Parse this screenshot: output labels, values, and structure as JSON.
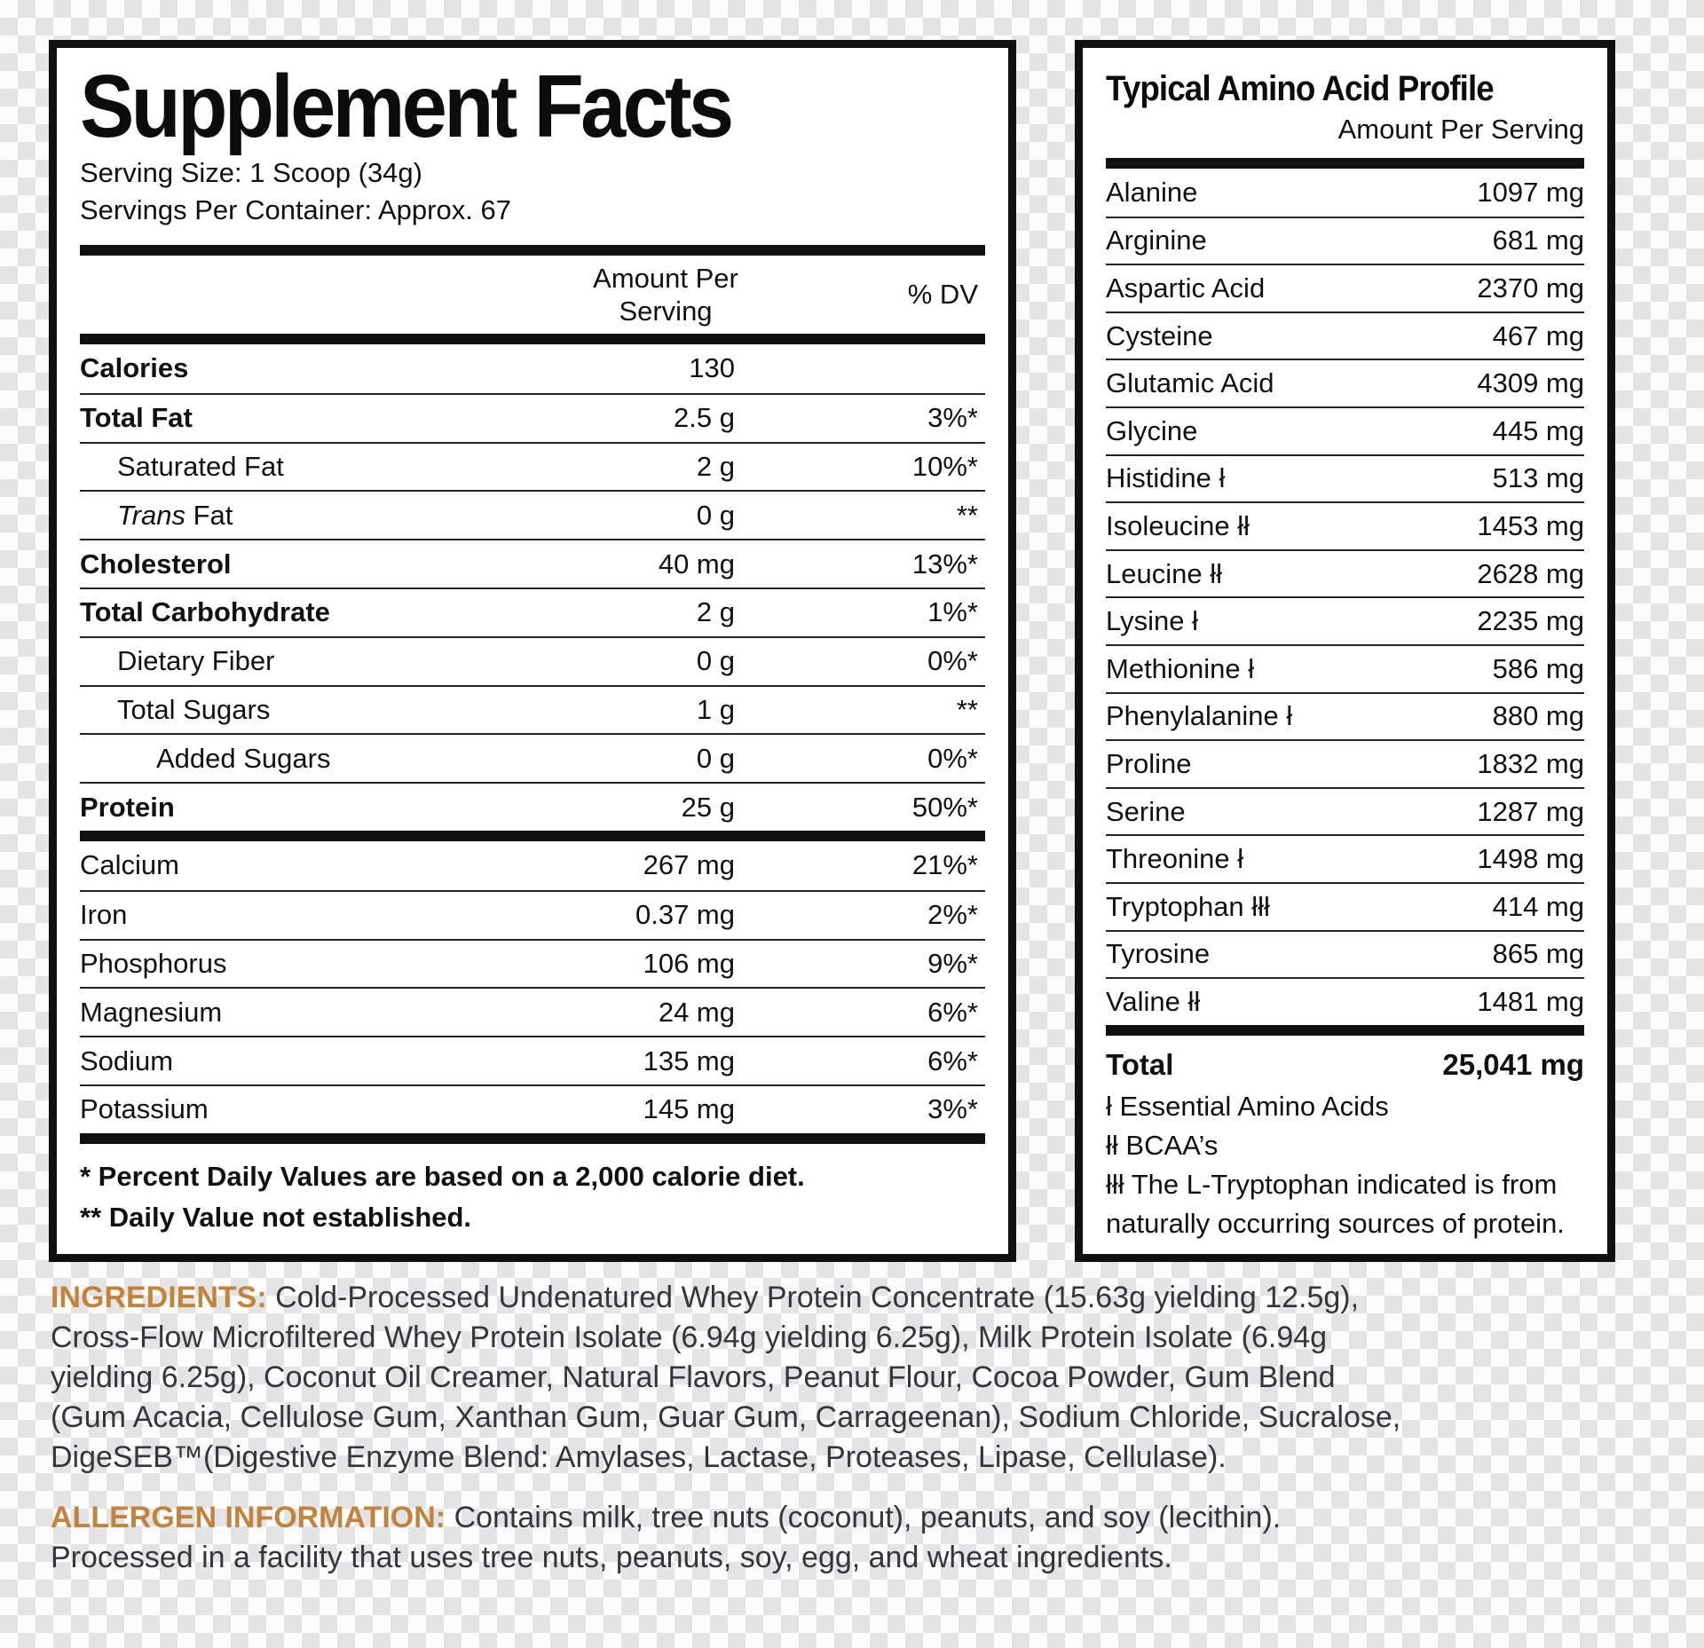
{
  "accent_color": "#c1843c",
  "background": {
    "checker_dark": "#e4e4e7",
    "checker_light": "#fcfcfd"
  },
  "supplement_facts": {
    "title": "Supplement Facts",
    "serving_size": "Serving Size: 1 Scoop (34g)",
    "servings_per_container": "Servings Per Container: Approx. 67",
    "amount_header": "Amount Per Serving",
    "dv_header": "% DV",
    "rows": [
      {
        "name": "Calories",
        "amount": "130",
        "dv": "",
        "bold": true,
        "indent": 0
      },
      {
        "name": "Total Fat",
        "amount": "2.5 g",
        "dv": "3%*",
        "bold": true,
        "indent": 0
      },
      {
        "name": "Saturated Fat",
        "amount": "2 g",
        "dv": "10%*",
        "bold": false,
        "indent": 1
      },
      {
        "name": "Fat",
        "italic_prefix": "Trans ",
        "amount": "0 g",
        "dv": "**",
        "bold": false,
        "indent": 1
      },
      {
        "name": "Cholesterol",
        "amount": "40 mg",
        "dv": "13%*",
        "bold": true,
        "indent": 0
      },
      {
        "name": "Total Carbohydrate",
        "amount": "2 g",
        "dv": "1%*",
        "bold": true,
        "indent": 0
      },
      {
        "name": "Dietary Fiber",
        "amount": "0 g",
        "dv": "0%*",
        "bold": false,
        "indent": 1
      },
      {
        "name": "Total Sugars",
        "amount": "1 g",
        "dv": "**",
        "bold": false,
        "indent": 1
      },
      {
        "name": "Added Sugars",
        "amount": "0 g",
        "dv": "0%*",
        "bold": false,
        "indent": 2
      },
      {
        "name": "Protein",
        "amount": "25 g",
        "dv": "50%*",
        "bold": true,
        "indent": 0,
        "bar_after": true
      },
      {
        "name": "Calcium",
        "amount": "267 mg",
        "dv": "21%*",
        "bold": false,
        "indent": 0
      },
      {
        "name": "Iron",
        "amount": "0.37 mg",
        "dv": "2%*",
        "bold": false,
        "indent": 0
      },
      {
        "name": "Phosphorus",
        "amount": "106 mg",
        "dv": "9%*",
        "bold": false,
        "indent": 0
      },
      {
        "name": "Magnesium",
        "amount": "24 mg",
        "dv": "6%*",
        "bold": false,
        "indent": 0
      },
      {
        "name": "Sodium",
        "amount": "135 mg",
        "dv": "6%*",
        "bold": false,
        "indent": 0
      },
      {
        "name": "Potassium",
        "amount": "145 mg",
        "dv": "3%*",
        "bold": false,
        "indent": 0,
        "bar_after": true
      }
    ],
    "footnotes": [
      "* Percent Daily Values are based on a 2,000 calorie diet.",
      "** Daily Value not established."
    ]
  },
  "amino_profile": {
    "title": "Typical Amino Acid Profile",
    "subtitle": "Amount Per Serving",
    "rows": [
      {
        "name": "Alanine",
        "amount": "1097 mg"
      },
      {
        "name": "Arginine",
        "amount": "681 mg"
      },
      {
        "name": "Aspartic Acid",
        "amount": "2370 mg"
      },
      {
        "name": "Cysteine",
        "amount": "467 mg"
      },
      {
        "name": "Glutamic Acid",
        "amount": "4309 mg"
      },
      {
        "name": "Glycine",
        "amount": "445 mg"
      },
      {
        "name": "Histidine ł",
        "amount": "513 mg"
      },
      {
        "name": "Isoleucine łł",
        "amount": "1453 mg"
      },
      {
        "name": "Leucine łł",
        "amount": "2628 mg"
      },
      {
        "name": "Lysine ł",
        "amount": "2235 mg"
      },
      {
        "name": "Methionine ł",
        "amount": "586 mg"
      },
      {
        "name": "Phenylalanine ł",
        "amount": "880 mg"
      },
      {
        "name": "Proline",
        "amount": "1832 mg"
      },
      {
        "name": "Serine",
        "amount": "1287 mg"
      },
      {
        "name": "Threonine ł",
        "amount": "1498 mg"
      },
      {
        "name": "Tryptophan łłł",
        "amount": "414 mg"
      },
      {
        "name": "Tyrosine",
        "amount": "865 mg"
      },
      {
        "name": "Valine łł",
        "amount": "1481 mg"
      }
    ],
    "total_label": "Total",
    "total_amount": "25,041 mg",
    "footnotes": [
      "ł Essential Amino Acids",
      "łł BCAA’s",
      "łłł The L-Tryptophan indicated is from naturally occurring sources of protein."
    ]
  },
  "ingredients": {
    "label": "INGREDIENTS:",
    "lines": [
      "Cold-Processed Undenatured Whey Protein Concentrate (15.63g yielding 12.5g),",
      "Cross-Flow Microfiltered Whey Protein Isolate (6.94g yielding 6.25g), Milk Protein Isolate (6.94g",
      "yielding 6.25g), Coconut Oil Creamer, Natural Flavors, Peanut Flour, Cocoa Powder, Gum Blend",
      "(Gum Acacia, Cellulose Gum, Xanthan Gum, Guar Gum, Carrageenan), Sodium Chloride, Sucralose,",
      "DigeSEB™(Digestive Enzyme Blend: Amylases, Lactase, Proteases, Lipase, Cellulase)."
    ]
  },
  "allergen": {
    "label": "ALLERGEN INFORMATION:",
    "lines": [
      "Contains milk, tree nuts (coconut), peanuts, and soy (lecithin).",
      "Processed in a facility that uses tree nuts, peanuts, soy, egg, and wheat ingredients."
    ]
  }
}
